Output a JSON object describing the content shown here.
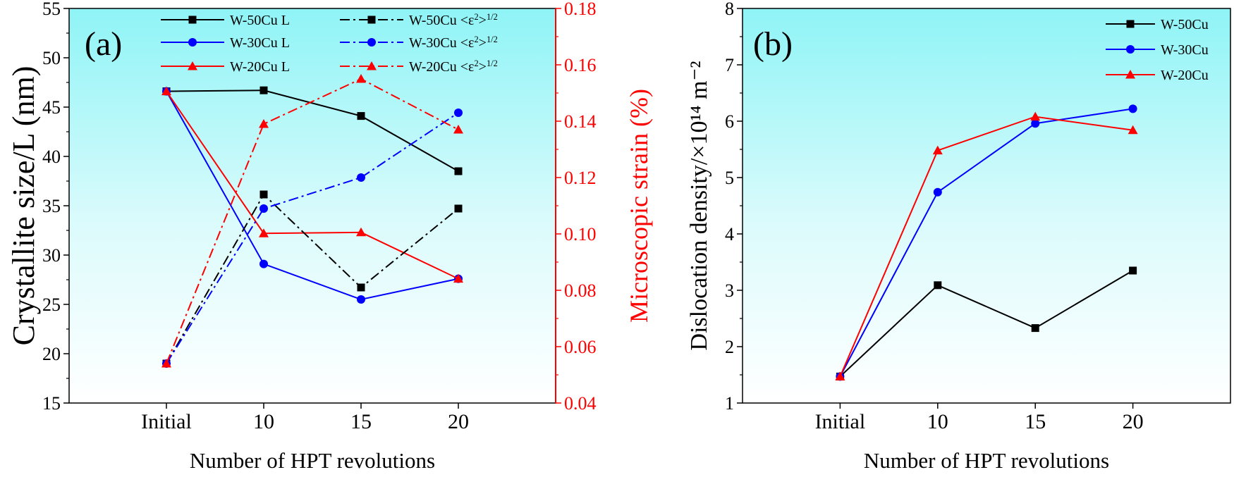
{
  "chart_data": [
    {
      "type": "line",
      "panel_label": "(a)",
      "categories": [
        "Initial",
        "10",
        "15",
        "20"
      ],
      "xlabel": "Number of HPT revolutions",
      "ylabel": "Crystallite size/L (nm)",
      "ylim": [
        15,
        55
      ],
      "yticks": [
        "15",
        "20",
        "25",
        "30",
        "35",
        "40",
        "45",
        "50",
        "55"
      ],
      "y2label": "Microscopic strain (%)",
      "y2lim": [
        0.04,
        0.18
      ],
      "y2ticks": [
        "0.04",
        "0.06",
        "0.08",
        "0.10",
        "0.12",
        "0.14",
        "0.16",
        "0.18"
      ],
      "legend_position": "top",
      "series": [
        {
          "name": "W-50Cu L",
          "axis": "left",
          "style": "solid",
          "marker": "square",
          "color": "#000000",
          "values": [
            46.6,
            46.7,
            44.1,
            38.5
          ]
        },
        {
          "name": "W-30Cu L",
          "axis": "left",
          "style": "solid",
          "marker": "circle",
          "color": "#0000ff",
          "values": [
            46.6,
            29.1,
            25.5,
            27.6
          ]
        },
        {
          "name": "W-20Cu L",
          "axis": "left",
          "style": "solid",
          "marker": "triangle",
          "color": "#ff0000",
          "values": [
            46.6,
            32.2,
            32.3,
            27.6
          ]
        },
        {
          "name": "W-50Cu <ε²>¹ᐟ²",
          "axis": "right",
          "style": "dashdot",
          "marker": "square",
          "color": "#000000",
          "values": [
            0.054,
            0.114,
            0.081,
            0.109
          ]
        },
        {
          "name": "W-30Cu <ε²>¹ᐟ²",
          "axis": "right",
          "style": "dashdot",
          "marker": "circle",
          "color": "#0000ff",
          "values": [
            0.054,
            0.109,
            0.12,
            0.143
          ]
        },
        {
          "name": "W-20Cu <ε²>¹ᐟ²",
          "axis": "right",
          "style": "dashdot",
          "marker": "triangle",
          "color": "#ff0000",
          "values": [
            0.054,
            0.139,
            0.155,
            0.137
          ]
        }
      ]
    },
    {
      "type": "line",
      "panel_label": "(b)",
      "categories": [
        "Initial",
        "10",
        "15",
        "20"
      ],
      "xlabel": "Number of HPT revolutions",
      "ylabel": "Dislocation density/×10¹⁴ m⁻²",
      "ylim": [
        1,
        8
      ],
      "yticks": [
        "1",
        "2",
        "3",
        "4",
        "5",
        "6",
        "7",
        "8"
      ],
      "legend_position": "top-right",
      "series": [
        {
          "name": "W-50Cu",
          "style": "solid",
          "marker": "square",
          "color": "#000000",
          "values": [
            1.47,
            3.09,
            2.33,
            3.35
          ]
        },
        {
          "name": "W-30Cu",
          "style": "solid",
          "marker": "circle",
          "color": "#0000ff",
          "values": [
            1.47,
            4.74,
            5.96,
            6.22
          ]
        },
        {
          "name": "W-20Cu",
          "style": "solid",
          "marker": "triangle",
          "color": "#ff0000",
          "values": [
            1.47,
            5.48,
            6.08,
            5.84
          ]
        }
      ]
    }
  ]
}
